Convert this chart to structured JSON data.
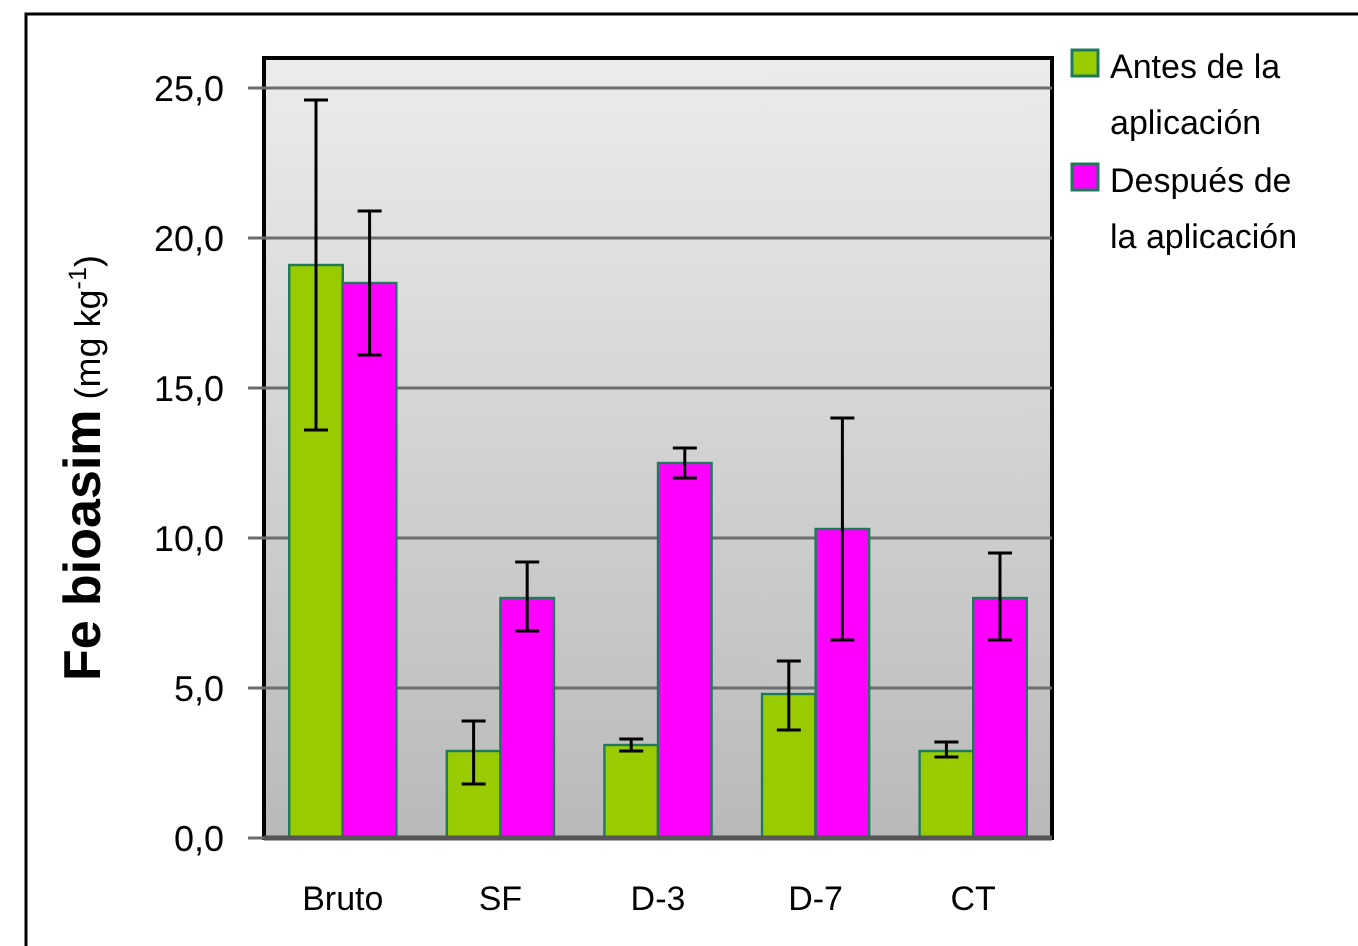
{
  "chart_data": {
    "type": "bar",
    "ylabel": "Fe bioasim (mg kg$^{-1}$)",
    "categories": [
      "Bruto",
      "SF",
      "D-3",
      "D-7",
      "CT"
    ],
    "series": [
      {
        "name": "Antes de la aplicación",
        "color": "#99cc00",
        "values": [
          19.1,
          2.9,
          3.1,
          4.8,
          2.9
        ],
        "errors": [
          [
            13.6,
            24.6
          ],
          [
            1.8,
            3.9
          ],
          [
            2.9,
            3.3
          ],
          [
            3.6,
            5.9
          ],
          [
            2.7,
            3.2
          ]
        ]
      },
      {
        "name": "Después de la aplicación",
        "color": "#ff00ff",
        "values": [
          18.5,
          8.0,
          12.5,
          10.3,
          8.0
        ],
        "errors": [
          [
            16.1,
            20.9
          ],
          [
            6.9,
            9.2
          ],
          [
            12.0,
            13.0
          ],
          [
            6.6,
            14.0
          ],
          [
            6.6,
            9.5
          ]
        ]
      }
    ],
    "ylim": [
      0,
      26
    ],
    "yticks": [
      {
        "value": 0,
        "label": "0,0"
      },
      {
        "value": 5,
        "label": "5,0"
      },
      {
        "value": 10,
        "label": "10,0"
      },
      {
        "value": 15,
        "label": "15,0"
      },
      {
        "value": 20,
        "label": "20,0"
      },
      {
        "value": 25,
        "label": "25,0"
      }
    ],
    "grid": "y",
    "legend": "top right"
  }
}
